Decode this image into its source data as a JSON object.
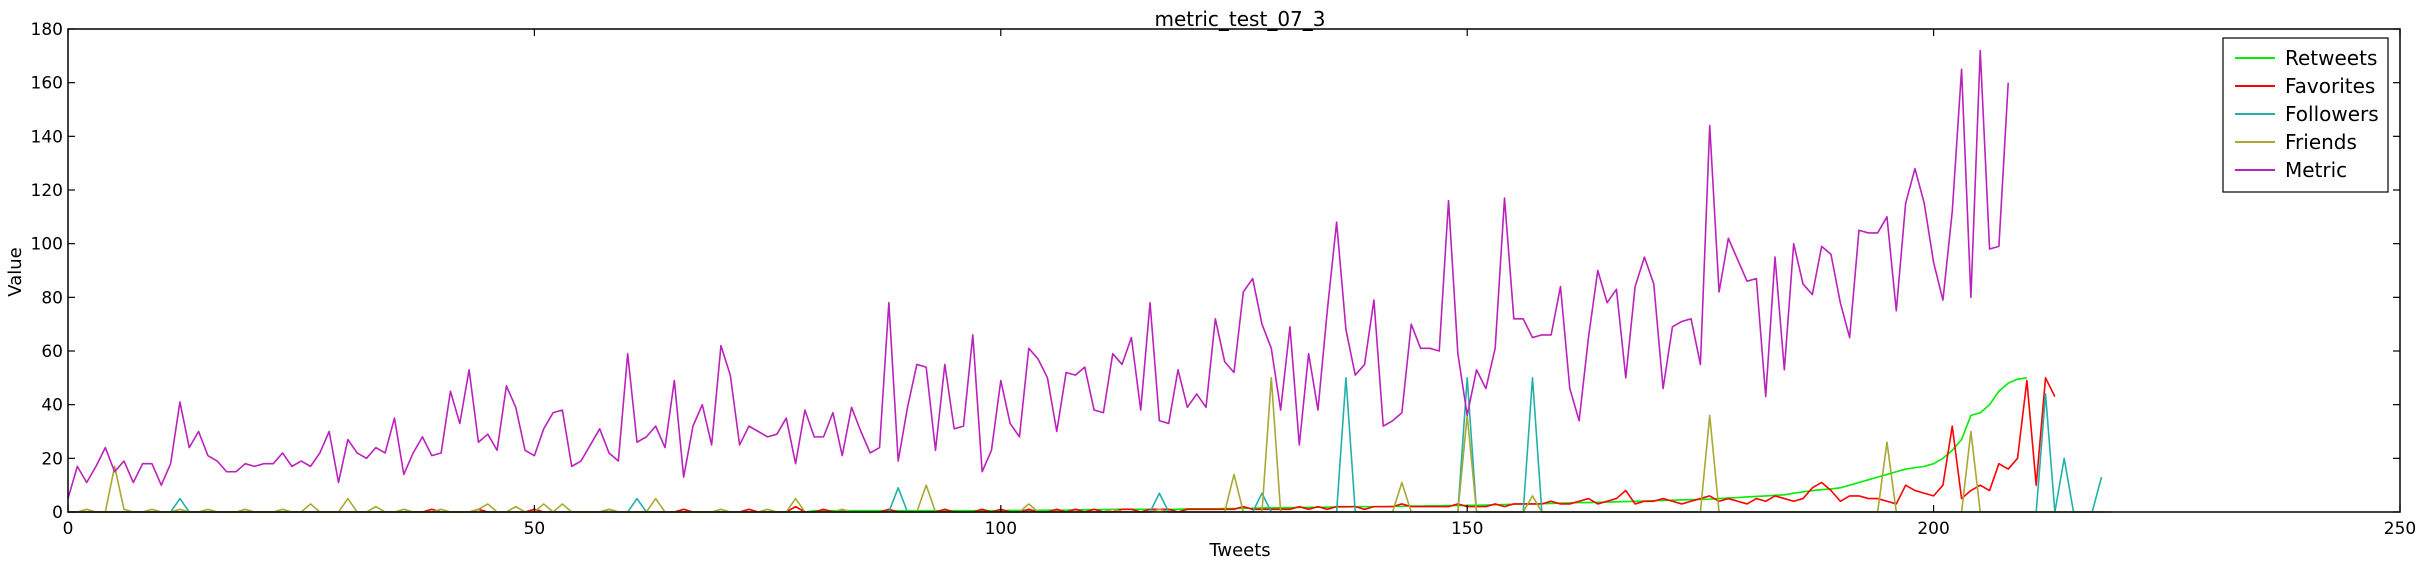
{
  "chart_data": {
    "type": "line",
    "title": "metric_test_07_3",
    "xlabel": "Tweets",
    "ylabel": "Value",
    "xlim": [
      0,
      250
    ],
    "ylim": [
      0,
      180
    ],
    "xticks": [
      0,
      50,
      100,
      150,
      200,
      250
    ],
    "yticks": [
      0,
      20,
      40,
      60,
      80,
      100,
      120,
      140,
      160,
      180
    ],
    "grid": false,
    "legend": "top-right",
    "series": [
      {
        "name": "Retweets",
        "color": "#00ee00",
        "x_start": 0,
        "values": [
          0,
          0,
          0,
          0,
          0,
          0,
          0,
          0,
          0,
          0,
          0,
          0,
          0,
          0,
          0,
          0,
          0,
          0,
          0,
          0,
          0,
          0,
          0,
          0,
          0,
          0,
          0,
          0,
          0,
          0,
          0,
          0,
          0,
          0,
          0,
          0,
          0,
          0,
          0,
          0,
          0,
          0,
          0,
          0,
          0,
          0,
          0,
          0,
          0,
          0,
          0,
          0,
          0,
          0,
          0,
          0,
          0,
          0,
          0,
          0,
          0,
          0,
          0,
          0,
          0,
          0,
          0,
          0,
          0,
          0,
          0,
          0,
          0,
          0,
          0,
          0,
          0,
          0,
          0,
          0,
          0.5,
          0.5,
          0.5,
          0.5,
          0.5,
          0.5,
          0.5,
          0.5,
          0.5,
          0.5,
          0.5,
          0.5,
          0.5,
          0.5,
          0.5,
          0.5,
          0.5,
          0.5,
          0.5,
          0.5,
          0.5,
          0.6,
          0.6,
          0.6,
          0.6,
          0.7,
          0.7,
          0.7,
          0.8,
          0.8,
          0.9,
          0.9,
          1,
          1,
          1,
          1,
          1,
          1,
          1,
          1,
          1.2,
          1.2,
          1.2,
          1.2,
          1.3,
          1.3,
          1.4,
          1.4,
          1.5,
          1.5,
          1.6,
          1.6,
          1.7,
          1.7,
          1.8,
          1.8,
          1.9,
          1.9,
          2,
          2,
          2,
          2,
          2.1,
          2.1,
          2.2,
          2.2,
          2.3,
          2.3,
          2.4,
          2.4,
          2.5,
          2.5,
          2.6,
          2.7,
          2.8,
          2.9,
          3,
          3,
          3.1,
          3.2,
          3.3,
          3.4,
          3.5,
          3.5,
          3.6,
          3.7,
          3.8,
          3.9,
          4,
          4.1,
          4.2,
          4.3,
          4.4,
          4.5,
          4.6,
          4.7,
          4.8,
          5,
          5.2,
          5.4,
          5.6,
          5.8,
          6,
          6.2,
          6.4,
          7,
          7.5,
          8,
          8.3,
          8.6,
          9,
          10,
          11,
          12,
          13,
          14,
          15,
          16,
          16.5,
          17,
          18,
          20,
          23,
          27,
          36,
          37,
          40,
          45,
          48,
          49.5,
          50
        ]
      },
      {
        "name": "Favorites",
        "color": "#ff0000",
        "x_start": 0,
        "values": [
          0,
          0,
          0,
          0,
          0,
          0,
          0,
          0,
          0,
          0,
          0,
          0,
          0,
          0,
          0,
          0,
          0,
          0,
          0,
          0,
          0,
          0,
          0,
          0,
          0,
          0,
          0,
          0,
          0,
          0,
          0,
          0,
          0,
          0,
          0,
          0,
          0,
          0,
          0,
          1,
          0,
          0,
          0,
          0,
          1,
          0,
          0,
          0,
          0,
          0,
          1,
          0,
          0,
          0,
          0,
          0,
          0,
          0,
          1,
          0,
          0,
          0,
          0,
          0,
          0,
          0,
          1,
          0,
          0,
          0,
          0,
          0,
          0,
          1,
          0,
          0,
          0,
          0,
          2,
          0,
          0,
          1,
          0,
          0,
          0,
          0,
          0,
          0,
          1,
          0,
          0,
          0,
          0,
          0,
          1,
          0,
          0,
          0,
          1,
          0,
          1,
          0,
          0,
          1,
          0,
          0,
          1,
          0,
          1,
          0,
          1,
          0,
          0,
          1,
          1,
          0,
          1,
          1,
          1,
          0,
          1,
          1,
          1,
          1,
          1,
          1,
          2,
          1,
          1,
          1,
          1,
          1,
          2,
          1,
          2,
          1,
          2,
          2,
          2,
          1,
          2,
          2,
          2,
          3,
          2,
          2,
          2,
          2,
          2,
          3,
          2,
          2,
          2,
          3,
          2,
          3,
          3,
          3,
          3,
          4,
          3,
          3,
          4,
          5,
          3,
          4,
          5,
          8,
          3,
          4,
          4,
          5,
          4,
          3,
          4,
          5,
          6,
          4,
          5,
          4,
          3,
          5,
          4,
          6,
          5,
          4,
          5,
          9,
          11,
          8,
          4,
          6,
          6,
          5,
          5,
          4,
          3,
          10,
          8,
          7,
          6,
          10,
          32,
          5,
          8,
          10,
          8,
          18,
          16,
          20,
          49,
          10,
          50,
          43
        ]
      },
      {
        "name": "Followers",
        "color": "#20b2aa",
        "x_start": 0,
        "values": [
          0,
          0,
          0,
          0,
          0,
          0,
          0,
          0,
          0,
          0,
          0,
          0,
          5,
          0,
          0,
          0,
          0,
          0,
          0,
          0,
          0,
          0,
          0,
          0,
          0,
          0,
          0,
          0,
          0,
          0,
          0,
          0,
          0,
          0,
          0,
          0,
          0,
          0,
          0,
          0,
          0,
          0,
          0,
          0,
          0,
          0,
          0,
          0,
          0,
          0,
          0,
          0,
          0,
          0,
          0,
          0,
          0,
          0,
          0,
          0,
          0,
          5,
          0,
          0,
          0,
          0,
          0,
          0,
          0,
          0,
          0,
          0,
          0,
          0,
          0,
          0,
          0,
          0,
          0,
          0,
          0,
          0,
          0,
          0,
          0,
          0,
          0,
          0,
          0,
          9,
          0,
          0,
          0,
          0,
          0,
          0,
          0,
          0,
          0,
          0,
          0,
          0,
          0,
          0,
          0,
          0,
          0,
          0,
          0,
          0,
          0,
          0,
          0,
          0,
          0,
          0,
          0,
          7,
          0,
          0,
          0,
          0,
          0,
          0,
          0,
          0,
          0,
          0,
          7,
          0,
          0,
          0,
          0,
          0,
          0,
          0,
          0,
          50,
          0,
          0,
          0,
          0,
          0,
          0,
          0,
          0,
          0,
          0,
          0,
          0,
          50,
          0,
          0,
          0,
          0,
          0,
          0,
          50,
          0,
          0,
          0,
          0,
          0,
          0,
          0,
          0,
          0,
          0,
          0,
          0,
          0,
          0,
          0,
          0,
          0,
          0,
          0,
          0,
          0,
          0,
          0,
          0,
          0,
          0,
          0,
          0,
          0,
          0,
          0,
          0,
          0,
          0,
          0,
          0,
          0,
          0,
          0,
          0,
          0,
          0,
          0,
          0,
          0,
          0,
          0,
          0,
          0,
          0,
          0,
          0,
          0,
          0,
          44,
          0,
          20,
          0,
          0,
          0,
          13
        ]
      },
      {
        "name": "Friends",
        "color": "#a8a832",
        "x_start": 0,
        "values": [
          0,
          0,
          1,
          0,
          0,
          17,
          1,
          0,
          0,
          1,
          0,
          0,
          1,
          0,
          0,
          1,
          0,
          0,
          0,
          1,
          0,
          0,
          0,
          1,
          0,
          0,
          3,
          0,
          0,
          0,
          5,
          0,
          0,
          2,
          0,
          0,
          1,
          0,
          0,
          0,
          1,
          0,
          0,
          0,
          1,
          3,
          0,
          0,
          2,
          0,
          0,
          3,
          0,
          3,
          0,
          0,
          0,
          0,
          1,
          0,
          0,
          0,
          0,
          5,
          0,
          0,
          0,
          0,
          0,
          0,
          1,
          0,
          0,
          0,
          0,
          1,
          0,
          0,
          5,
          0,
          0,
          0,
          0,
          1,
          0,
          0,
          0,
          0,
          0,
          0,
          0,
          0,
          10,
          0,
          0,
          0,
          0,
          0,
          0,
          0,
          0,
          0,
          0,
          3,
          0,
          0,
          0,
          0,
          0,
          0,
          0,
          0,
          1,
          0,
          0,
          0,
          0,
          1,
          0,
          0,
          0,
          0,
          0,
          0,
          0,
          14,
          0,
          0,
          0,
          50,
          0,
          0,
          0,
          0,
          0,
          0,
          0,
          0,
          0,
          0,
          0,
          0,
          0,
          11,
          0,
          0,
          0,
          0,
          0,
          0,
          36,
          0,
          0,
          0,
          0,
          0,
          0,
          6,
          0,
          0,
          0,
          0,
          0,
          0,
          0,
          0,
          0,
          0,
          0,
          0,
          0,
          0,
          0,
          0,
          0,
          0,
          36,
          0,
          0,
          0,
          0,
          0,
          0,
          0,
          0,
          0,
          0,
          0,
          0,
          0,
          0,
          0,
          0,
          0,
          0,
          26,
          0,
          0,
          0,
          0,
          0,
          0,
          0,
          0,
          30,
          0,
          0,
          0,
          0,
          0,
          0,
          0,
          0,
          0,
          0,
          0,
          0,
          0,
          0,
          0
        ]
      },
      {
        "name": "Metric",
        "color": "#bb22bb",
        "x_start": 0,
        "values": [
          5,
          17,
          11,
          17,
          24,
          15,
          19,
          11,
          18,
          18,
          10,
          18,
          41,
          24,
          30,
          21,
          19,
          15,
          15,
          18,
          17,
          18,
          18,
          22,
          17,
          19,
          17,
          22,
          30,
          11,
          27,
          22,
          20,
          24,
          22,
          35,
          14,
          22,
          28,
          21,
          22,
          45,
          33,
          53,
          26,
          29,
          23,
          47,
          39,
          23,
          21,
          31,
          37,
          38,
          17,
          19,
          25,
          31,
          22,
          19,
          59,
          26,
          28,
          32,
          24,
          49,
          13,
          32,
          40,
          25,
          62,
          51,
          25,
          32,
          30,
          28,
          29,
          35,
          18,
          38,
          28,
          28,
          37,
          21,
          39,
          30,
          22,
          24,
          78,
          19,
          39,
          55,
          54,
          23,
          55,
          31,
          32,
          66,
          15,
          23,
          49,
          33,
          28,
          61,
          57,
          50,
          30,
          52,
          51,
          54,
          38,
          37,
          59,
          55,
          65,
          38,
          78,
          34,
          33,
          53,
          39,
          44,
          39,
          72,
          56,
          52,
          82,
          87,
          70,
          61,
          38,
          69,
          25,
          59,
          38,
          75,
          108,
          68,
          51,
          55,
          79,
          32,
          34,
          37,
          70,
          61,
          61,
          60,
          116,
          59,
          36,
          53,
          46,
          61,
          117,
          72,
          72,
          65,
          66,
          66,
          84,
          46,
          34,
          65,
          90,
          78,
          83,
          50,
          84,
          95,
          85,
          46,
          69,
          71,
          72,
          55,
          144,
          82,
          102,
          94,
          86,
          87,
          43,
          95,
          53,
          100,
          85,
          81,
          99,
          96,
          78,
          65,
          105,
          104,
          104,
          110,
          75,
          115,
          128,
          115,
          93,
          79,
          112,
          165,
          80,
          172,
          98,
          99,
          160
        ]
      }
    ]
  }
}
